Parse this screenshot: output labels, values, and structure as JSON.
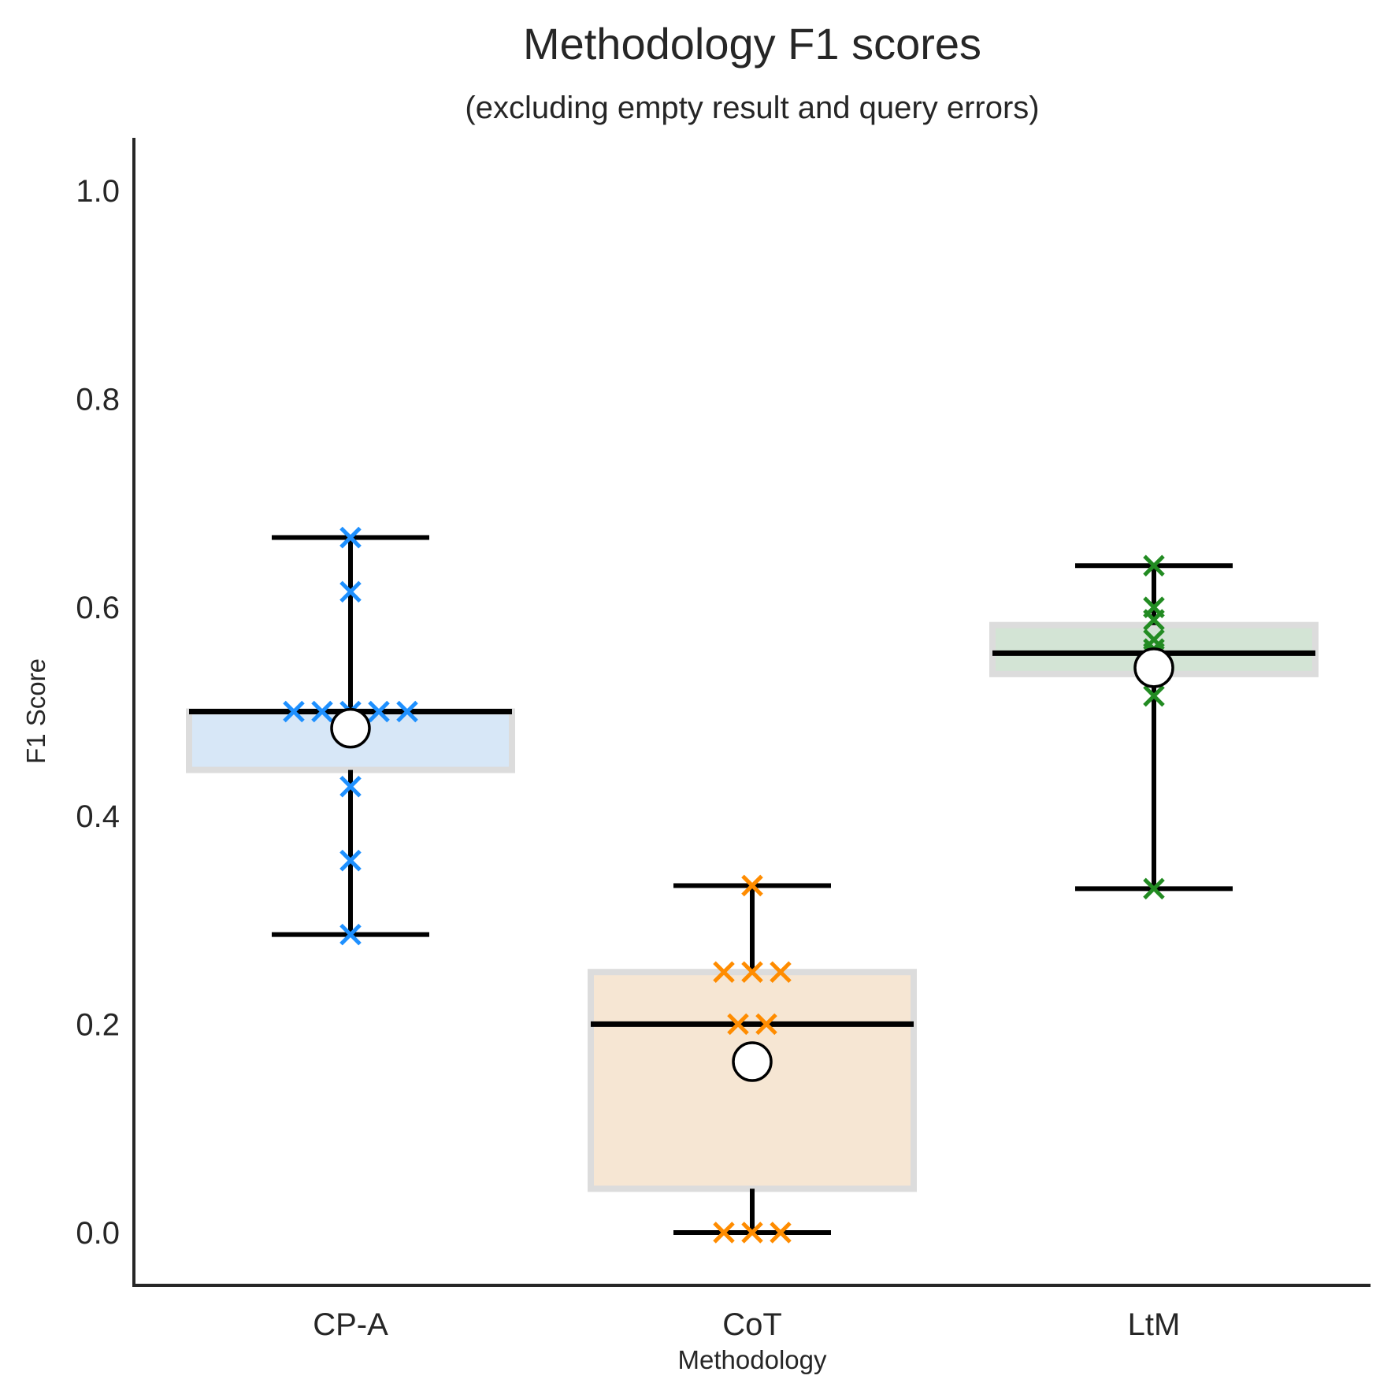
{
  "chart_data": {
    "type": "box",
    "title": "Methodology F1 scores",
    "subtitle": "(excluding empty result and query errors)",
    "xlabel": "Methodology",
    "ylabel": "F1 Score",
    "ylim": [
      -0.05,
      1.05
    ],
    "yticks": [
      "0.0",
      "0.2",
      "0.4",
      "0.6",
      "0.8",
      "1.0"
    ],
    "grid": false,
    "categories": [
      "CP-A",
      "CoT",
      "LtM"
    ],
    "series": [
      {
        "category": "CP-A",
        "color": "#1e90ff",
        "box_fill": "#d7e7f7",
        "whisker_low": 0.286,
        "q1": 0.444,
        "median": 0.5,
        "q3": 0.5,
        "whisker_high": 0.667,
        "mean": 0.484,
        "points": [
          0.667,
          0.615,
          0.5,
          0.5,
          0.5,
          0.5,
          0.5,
          0.428,
          0.357,
          0.286
        ]
      },
      {
        "category": "CoT",
        "color": "#ff8c00",
        "box_fill": "#f6e6d3",
        "whisker_low": 0.0,
        "q1": 0.042,
        "median": 0.2,
        "q3": 0.25,
        "whisker_high": 0.333,
        "mean": 0.164,
        "points": [
          0.333,
          0.25,
          0.25,
          0.25,
          0.2,
          0.2,
          0.0,
          0.0,
          0.0
        ]
      },
      {
        "category": "LtM",
        "color": "#228b22",
        "box_fill": "#d3e4d5",
        "whisker_low": 0.33,
        "q1": 0.536,
        "median": 0.556,
        "q3": 0.583,
        "whisker_high": 0.64,
        "mean": 0.542,
        "points": [
          0.64,
          0.6,
          0.588,
          0.569,
          0.56,
          0.556,
          0.537,
          0.535,
          0.515,
          0.33
        ]
      }
    ]
  }
}
